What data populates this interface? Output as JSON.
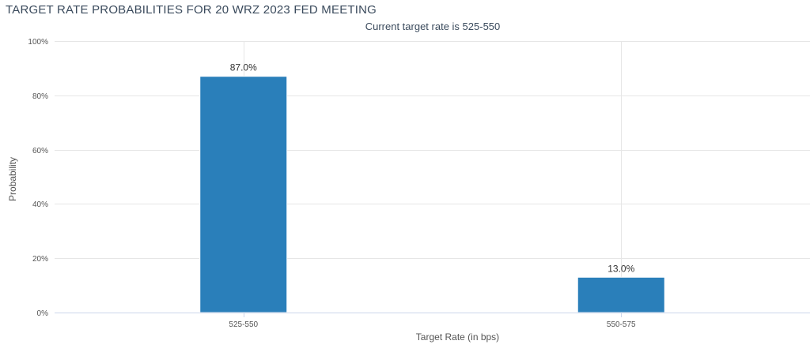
{
  "chart_data": {
    "type": "bar",
    "title": "TARGET RATE PROBABILITIES FOR 20 WRZ 2023 FED MEETING",
    "subtitle": "Current target rate is 525-550",
    "categories": [
      "525-550",
      "550-575"
    ],
    "values": [
      87.0,
      13.0
    ],
    "data_labels": [
      "87.0%",
      "13.0%"
    ],
    "xlabel": "Target Rate (in bps)",
    "ylabel": "Probability",
    "ylim": [
      0,
      100
    ],
    "yticks": [
      0,
      20,
      40,
      60,
      80,
      100
    ],
    "ytick_labels": [
      "0%",
      "20%",
      "40%",
      "60%",
      "80%",
      "100%"
    ],
    "grid": true,
    "legend": "none",
    "bar_color": "#2a7fba"
  }
}
